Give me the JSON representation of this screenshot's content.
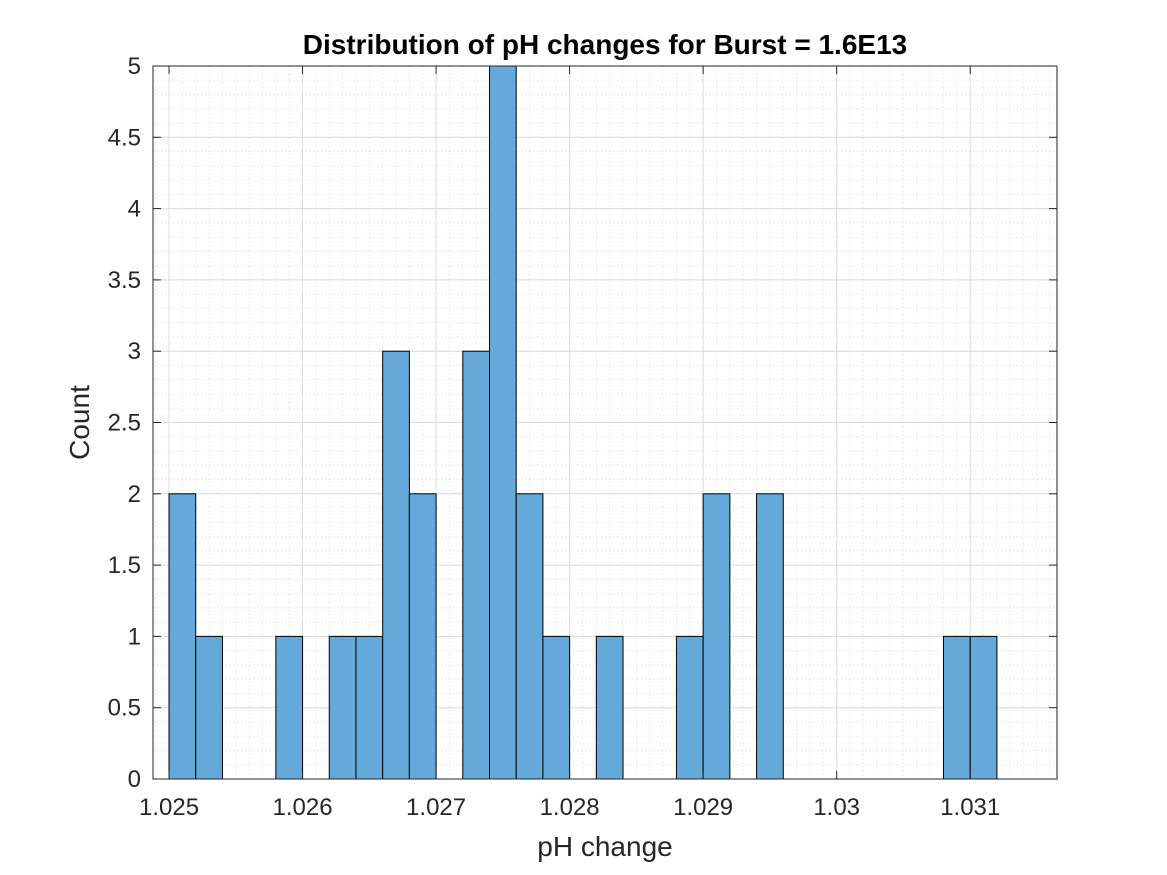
{
  "chart_data": {
    "type": "bar",
    "subtype": "histogram",
    "title": "Distribution of pH changes for Burst = 1.6E13",
    "xlabel": "pH change",
    "ylabel": "Count",
    "xlim": [
      1.02488,
      1.03165
    ],
    "ylim": [
      0,
      5
    ],
    "bin_width": 0.0002,
    "bin_edges": [
      1.025,
      1.0252,
      1.0254,
      1.0256,
      1.0258,
      1.026,
      1.0262,
      1.0264,
      1.0266,
      1.0268,
      1.027,
      1.0272,
      1.0274,
      1.0276,
      1.0278,
      1.028,
      1.0282,
      1.0284,
      1.0286,
      1.0288,
      1.029,
      1.0292,
      1.0294,
      1.0296,
      1.0298,
      1.03,
      1.0302,
      1.0304,
      1.0306,
      1.0308,
      1.031,
      1.0312,
      1.0314
    ],
    "values": [
      2,
      1,
      0,
      0,
      1,
      0,
      1,
      1,
      3,
      2,
      0,
      3,
      5,
      2,
      1,
      0,
      1,
      0,
      0,
      1,
      2,
      0,
      2,
      0,
      0,
      0,
      0,
      0,
      0,
      1,
      1,
      0
    ],
    "x_ticks": [
      1.025,
      1.026,
      1.027,
      1.028,
      1.029,
      1.03,
      1.031
    ],
    "x_tick_labels": [
      "1.025",
      "1.026",
      "1.027",
      "1.028",
      "1.029",
      "1.03",
      "1.031"
    ],
    "y_ticks": [
      0,
      0.5,
      1,
      1.5,
      2,
      2.5,
      3,
      3.5,
      4,
      4.5,
      5
    ],
    "y_tick_labels": [
      "0",
      "0.5",
      "1",
      "1.5",
      "2",
      "2.5",
      "3",
      "3.5",
      "4",
      "4.5",
      "5"
    ],
    "bar_color": "#64a9d9",
    "bar_edge_color": "#000000",
    "grid": true,
    "minor_grid": true,
    "legend": "none"
  }
}
